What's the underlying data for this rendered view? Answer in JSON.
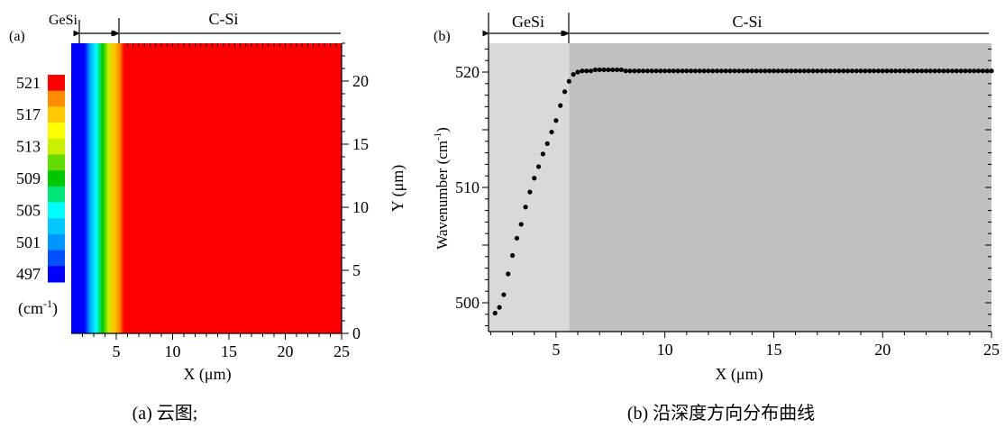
{
  "panel_a": {
    "label": "(a)",
    "region_gesi": "GeSi",
    "region_csi": "C-Si",
    "xlabel": "X (μm)",
    "ylabel": "Y (μm)",
    "colorbar_unit_main": "(cm",
    "colorbar_unit_sup": "-1",
    "colorbar_unit_end": ")",
    "caption": "(a) 云图;"
  },
  "panel_b": {
    "label": "(b)",
    "region_gesi": "GeSi",
    "region_csi": "C-Si",
    "xlabel": "X (μm)",
    "ylabel_main": "Wavenumber (cm",
    "ylabel_sup": "-1",
    "ylabel_end": ")",
    "caption": "(b) 沿深度方向分布曲线"
  },
  "colors": {
    "gesi_shade": "#d9d9d9",
    "csi_shade": "#c0c0c0",
    "marker": "#000000",
    "map_red": "#ff0000"
  },
  "chart_data": [
    {
      "type": "heatmap",
      "title": "",
      "xlabel": "X (μm)",
      "ylabel": "Y (μm)",
      "xlim": [
        1,
        25
      ],
      "ylim": [
        0,
        23
      ],
      "x_ticks": [
        5,
        10,
        15,
        20,
        25
      ],
      "y_ticks": [
        0,
        5,
        10,
        15,
        20
      ],
      "interface_x": 5.6,
      "regions": [
        {
          "name": "GeSi",
          "x_range": [
            2,
            5.6
          ]
        },
        {
          "name": "C-Si",
          "x_range": [
            5.6,
            25
          ]
        }
      ],
      "colorbar": {
        "unit": "cm-1",
        "tick_labels": [
          "521",
          "517",
          "513",
          "509",
          "505",
          "501",
          "497"
        ],
        "levels": [
          {
            "value": 497,
            "color": "#0000ff"
          },
          {
            "value": 499,
            "color": "#0050ff"
          },
          {
            "value": 501,
            "color": "#0096ff"
          },
          {
            "value": 503,
            "color": "#00c8ff"
          },
          {
            "value": 505,
            "color": "#00ffff"
          },
          {
            "value": 507,
            "color": "#00e678"
          },
          {
            "value": 509,
            "color": "#00c800"
          },
          {
            "value": 511,
            "color": "#64dc00"
          },
          {
            "value": 513,
            "color": "#c8f000"
          },
          {
            "value": 515,
            "color": "#ffff00"
          },
          {
            "value": 517,
            "color": "#ffc800"
          },
          {
            "value": 519,
            "color": "#ff8c00"
          },
          {
            "value": 521,
            "color": "#ff0000"
          }
        ]
      },
      "gradient_profile": [
        {
          "x": 1.0,
          "value": 497
        },
        {
          "x": 2.2,
          "value": 497
        },
        {
          "x": 2.6,
          "value": 501
        },
        {
          "x": 3.2,
          "value": 505
        },
        {
          "x": 3.8,
          "value": 509
        },
        {
          "x": 4.3,
          "value": 513
        },
        {
          "x": 4.8,
          "value": 517
        },
        {
          "x": 5.3,
          "value": 519
        },
        {
          "x": 5.7,
          "value": 521
        },
        {
          "x": 25.0,
          "value": 521
        }
      ]
    },
    {
      "type": "scatter",
      "title": "",
      "xlabel": "X (μm)",
      "ylabel": "Wavenumber (cm-1)",
      "xlim": [
        1.9,
        25
      ],
      "ylim": [
        497.5,
        522.5
      ],
      "x_ticks": [
        5,
        10,
        15,
        20,
        25
      ],
      "y_ticks": [
        500,
        510,
        520
      ],
      "interface_x": 5.6,
      "regions": [
        {
          "name": "GeSi",
          "x_range": [
            1.9,
            5.6
          ]
        },
        {
          "name": "C-Si",
          "x_range": [
            5.6,
            25
          ]
        }
      ],
      "points": [
        [
          2.2,
          499.1
        ],
        [
          2.4,
          499.6
        ],
        [
          2.6,
          500.7
        ],
        [
          2.8,
          502.5
        ],
        [
          3.0,
          504.1
        ],
        [
          3.2,
          505.6
        ],
        [
          3.4,
          506.8
        ],
        [
          3.6,
          508.3
        ],
        [
          3.8,
          509.6
        ],
        [
          4.0,
          510.8
        ],
        [
          4.2,
          511.8
        ],
        [
          4.4,
          512.9
        ],
        [
          4.6,
          513.8
        ],
        [
          4.8,
          514.8
        ],
        [
          5.0,
          515.8
        ],
        [
          5.2,
          517.1
        ],
        [
          5.4,
          518.3
        ],
        [
          5.6,
          519.2
        ],
        [
          5.8,
          519.8
        ],
        [
          6.0,
          520.0
        ],
        [
          6.2,
          520.1
        ],
        [
          6.4,
          520.1
        ],
        [
          6.6,
          520.1
        ],
        [
          6.8,
          520.2
        ],
        [
          7.0,
          520.2
        ],
        [
          7.2,
          520.2
        ],
        [
          7.4,
          520.2
        ],
        [
          7.6,
          520.2
        ],
        [
          7.8,
          520.2
        ],
        [
          8.0,
          520.2
        ],
        [
          8.2,
          520.1
        ],
        [
          8.4,
          520.1
        ],
        [
          8.6,
          520.1
        ],
        [
          8.8,
          520.1
        ],
        [
          9.0,
          520.1
        ],
        [
          9.2,
          520.1
        ],
        [
          9.4,
          520.1
        ],
        [
          9.6,
          520.1
        ],
        [
          9.8,
          520.1
        ],
        [
          10.0,
          520.1
        ],
        [
          10.2,
          520.1
        ],
        [
          10.4,
          520.1
        ],
        [
          10.6,
          520.1
        ],
        [
          10.8,
          520.1
        ],
        [
          11.0,
          520.1
        ],
        [
          11.2,
          520.1
        ],
        [
          11.4,
          520.1
        ],
        [
          11.6,
          520.1
        ],
        [
          11.8,
          520.1
        ],
        [
          12.0,
          520.1
        ],
        [
          12.2,
          520.1
        ],
        [
          12.4,
          520.1
        ],
        [
          12.6,
          520.1
        ],
        [
          12.8,
          520.1
        ],
        [
          13.0,
          520.1
        ],
        [
          13.2,
          520.1
        ],
        [
          13.4,
          520.1
        ],
        [
          13.6,
          520.1
        ],
        [
          13.8,
          520.1
        ],
        [
          14.0,
          520.1
        ],
        [
          14.2,
          520.1
        ],
        [
          14.4,
          520.1
        ],
        [
          14.6,
          520.1
        ],
        [
          14.8,
          520.1
        ],
        [
          15.0,
          520.1
        ],
        [
          15.2,
          520.1
        ],
        [
          15.4,
          520.1
        ],
        [
          15.6,
          520.1
        ],
        [
          15.8,
          520.1
        ],
        [
          16.0,
          520.1
        ],
        [
          16.2,
          520.1
        ],
        [
          16.4,
          520.1
        ],
        [
          16.6,
          520.1
        ],
        [
          16.8,
          520.1
        ],
        [
          17.0,
          520.1
        ],
        [
          17.2,
          520.1
        ],
        [
          17.4,
          520.1
        ],
        [
          17.6,
          520.1
        ],
        [
          17.8,
          520.1
        ],
        [
          18.0,
          520.1
        ],
        [
          18.2,
          520.1
        ],
        [
          18.4,
          520.1
        ],
        [
          18.6,
          520.1
        ],
        [
          18.8,
          520.1
        ],
        [
          19.0,
          520.1
        ],
        [
          19.2,
          520.1
        ],
        [
          19.4,
          520.1
        ],
        [
          19.6,
          520.1
        ],
        [
          19.8,
          520.1
        ],
        [
          20.0,
          520.1
        ],
        [
          20.2,
          520.1
        ],
        [
          20.4,
          520.1
        ],
        [
          20.6,
          520.1
        ],
        [
          20.8,
          520.1
        ],
        [
          21.0,
          520.1
        ],
        [
          21.2,
          520.1
        ],
        [
          21.4,
          520.1
        ],
        [
          21.6,
          520.1
        ],
        [
          21.8,
          520.1
        ],
        [
          22.0,
          520.1
        ],
        [
          22.2,
          520.1
        ],
        [
          22.4,
          520.1
        ],
        [
          22.6,
          520.1
        ],
        [
          22.8,
          520.1
        ],
        [
          23.0,
          520.1
        ],
        [
          23.2,
          520.1
        ],
        [
          23.4,
          520.1
        ],
        [
          23.6,
          520.1
        ],
        [
          23.8,
          520.1
        ],
        [
          24.0,
          520.1
        ],
        [
          24.2,
          520.1
        ],
        [
          24.4,
          520.1
        ],
        [
          24.6,
          520.1
        ],
        [
          24.8,
          520.1
        ],
        [
          25.0,
          520.1
        ]
      ]
    }
  ]
}
